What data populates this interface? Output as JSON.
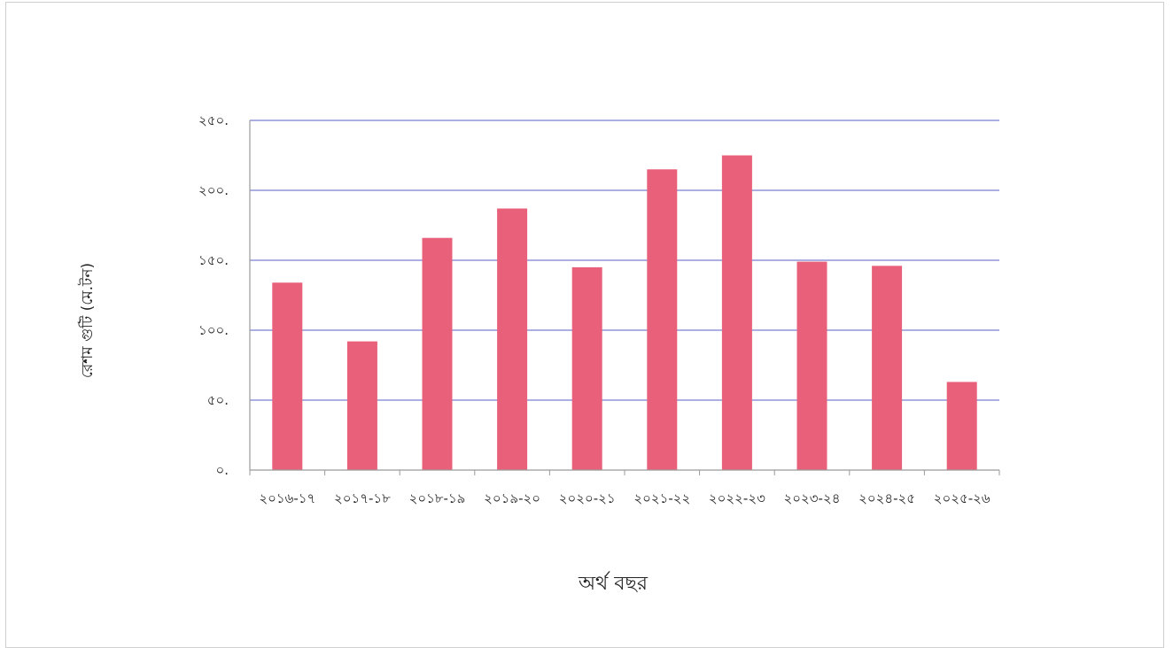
{
  "chart_data": {
    "type": "bar",
    "title": "",
    "xlabel": "অর্থ বছর",
    "ylabel": "রেশম গুটি (মে.টন)",
    "categories": [
      "২০১৬-১৭",
      "২০১৭-১৮",
      "২০১৮-১৯",
      "২০১৯-২০",
      "২০২০-২১",
      "২০২১-২২",
      "২০২২-২৩",
      "২০২৩-২৪",
      "২০২৪-২৫",
      "২০২৫-২৬"
    ],
    "values": [
      134,
      92,
      166,
      187,
      145,
      215,
      225,
      149,
      146,
      63
    ],
    "ylim": [
      0,
      250
    ],
    "yticks": [
      0,
      50,
      100,
      150,
      200,
      250
    ],
    "ytick_labels": [
      "০.",
      "৫০.",
      "১০০.",
      "১৫০.",
      "২০০.",
      "২৫০."
    ],
    "grid": true,
    "bar_color": "#e8607a",
    "grid_color": "#7a7fd0"
  }
}
